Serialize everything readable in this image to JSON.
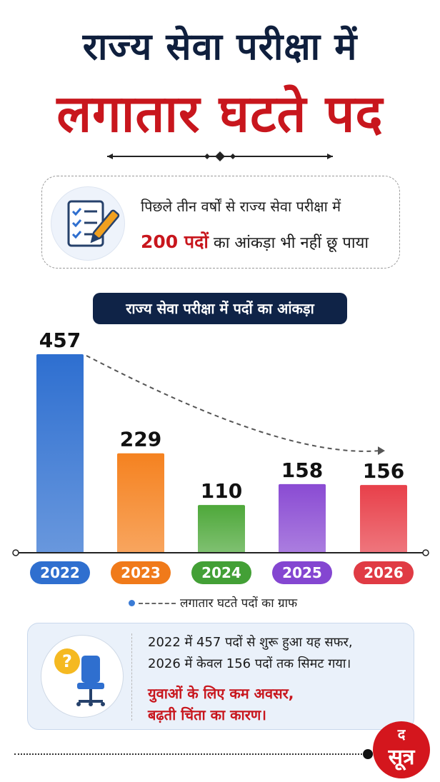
{
  "header": {
    "title_line1": "राज्य सेवा परीक्षा में",
    "title_line2": "लगातार घटते पद"
  },
  "info": {
    "line1": "पिछले तीन वर्षों से राज्य सेवा परीक्षा में",
    "highlight": "200 पदों",
    "line2_rest": " का आंकड़ा भी नहीं छू पाया",
    "icon": "checklist-pen-icon"
  },
  "chart_data": {
    "type": "bar",
    "title": "राज्य सेवा परीक्षा में पदों का आंकड़ा",
    "categories": [
      "2022",
      "2023",
      "2024",
      "2025",
      "2026"
    ],
    "values": [
      457,
      229,
      110,
      158,
      156
    ],
    "data_labels": [
      "457",
      "229",
      "110",
      "158",
      "156"
    ],
    "colors": [
      "#2e6fd0",
      "#f58220",
      "#4ea83a",
      "#8a4bd3",
      "#e8404a"
    ],
    "pill_colors": [
      "#2f6fcf",
      "#f07a1a",
      "#43a036",
      "#8446d1",
      "#e03b44"
    ],
    "ylim": [
      0,
      457
    ],
    "trend": "dashed arrow from 2022 bar top to 2026 bar top",
    "legend": "लगातार घटते पदों का ग्राफ"
  },
  "bottom": {
    "line1": "2022 में 457 पदों से शुरू हुआ यह सफर,",
    "line2": "2026 में केवल 156 पदों तक सिमट गया।",
    "line3": "युवाओं के लिए कम अवसर,",
    "line4": "बढ़ती चिंता का कारण।",
    "icon": "question-chair-icon"
  },
  "logo": {
    "top": "द",
    "main": "सूत्र"
  }
}
